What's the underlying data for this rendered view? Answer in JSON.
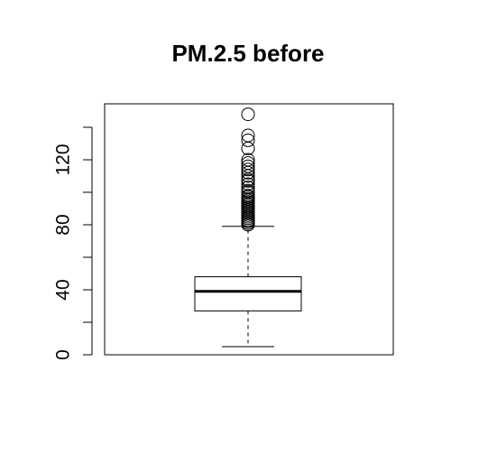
{
  "chart_data": {
    "type": "boxplot",
    "title": "PM.2.5 before",
    "xlabel": "",
    "ylabel": "",
    "ylim": [
      0,
      150
    ],
    "y_ticks": [
      0,
      20,
      40,
      60,
      80,
      100,
      120,
      140
    ],
    "y_tick_labels": [
      "0",
      "",
      "40",
      "",
      "80",
      "",
      "120",
      ""
    ],
    "grid": false,
    "legend": "none",
    "box": {
      "whisker_low": 5,
      "q1": 27,
      "median": 39,
      "q3": 48,
      "whisker_high": 79
    },
    "outliers": [
      80,
      81,
      82,
      83,
      84,
      85,
      86,
      87,
      88,
      89,
      90,
      91,
      92,
      93,
      94,
      95,
      96,
      97,
      98,
      100,
      101,
      103,
      105,
      107,
      108,
      110,
      112,
      114,
      116,
      118,
      120,
      127,
      132,
      135,
      148
    ]
  },
  "colors": {
    "background": "#ffffff",
    "stroke": "#000000"
  }
}
